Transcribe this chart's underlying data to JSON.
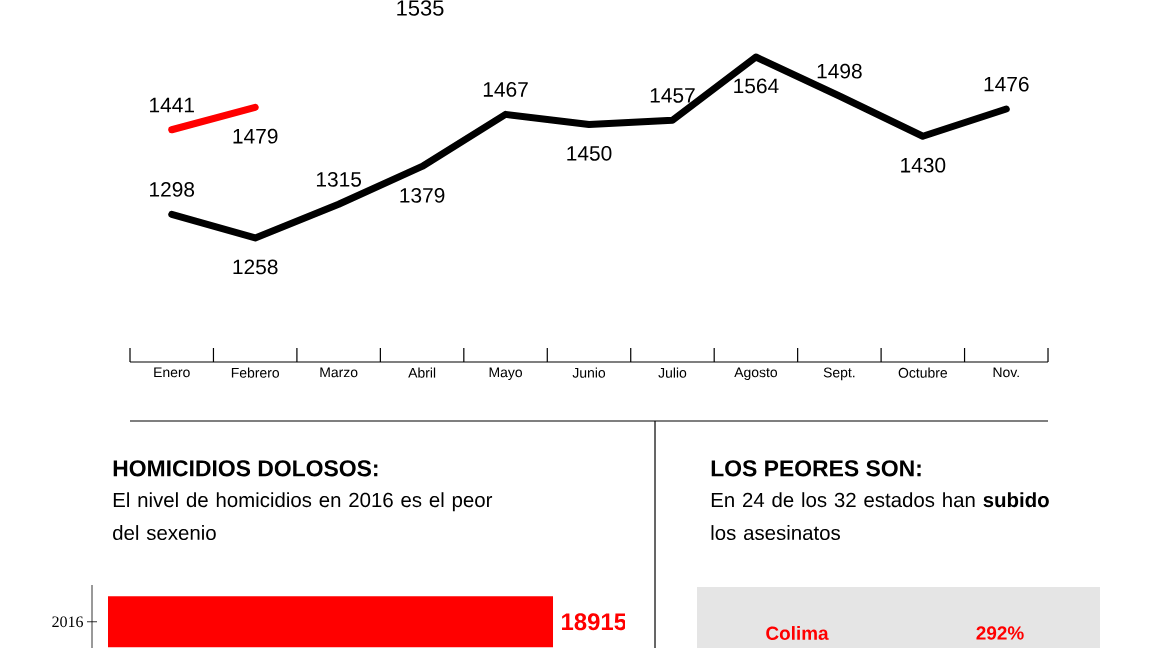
{
  "chart_data": [
    {
      "type": "line",
      "categories": [
        "Enero",
        "Febrero",
        "Marzo",
        "Abril",
        "Mayo",
        "Junio",
        "Julio",
        "Agosto",
        "Sept.",
        "Octubre",
        "Nov."
      ],
      "series": [
        {
          "color": "#ff0000",
          "values": [
            1441,
            1479,
            null,
            null,
            null,
            null,
            null,
            null,
            null,
            null,
            null
          ]
        },
        {
          "color": "#000000",
          "values": [
            1298,
            1258,
            1315,
            1379,
            1467,
            1450,
            1457,
            1564,
            1498,
            1430,
            1476
          ]
        }
      ],
      "data_labels": true,
      "tick_labels": "x",
      "annotations": [
        "1535"
      ]
    },
    {
      "type": "bar",
      "orientation": "horizontal",
      "title": "HOMICIDIOS DOLOSOS:",
      "subtitle": "El nivel de homicidios en 2016 es el peor del sexenio",
      "categories": [
        "2016"
      ],
      "values": [
        18915
      ],
      "color": "#ff0000",
      "data_labels": true,
      "tick_labels": "y"
    },
    {
      "type": "other",
      "title": "LOS PEORES SON:",
      "subtitle": "En 24 de los 32 estados han **subido** los asesinatos",
      "categories": [
        "Colima"
      ],
      "value_labels": [
        "292%"
      ],
      "color": "#ff0000"
    }
  ]
}
